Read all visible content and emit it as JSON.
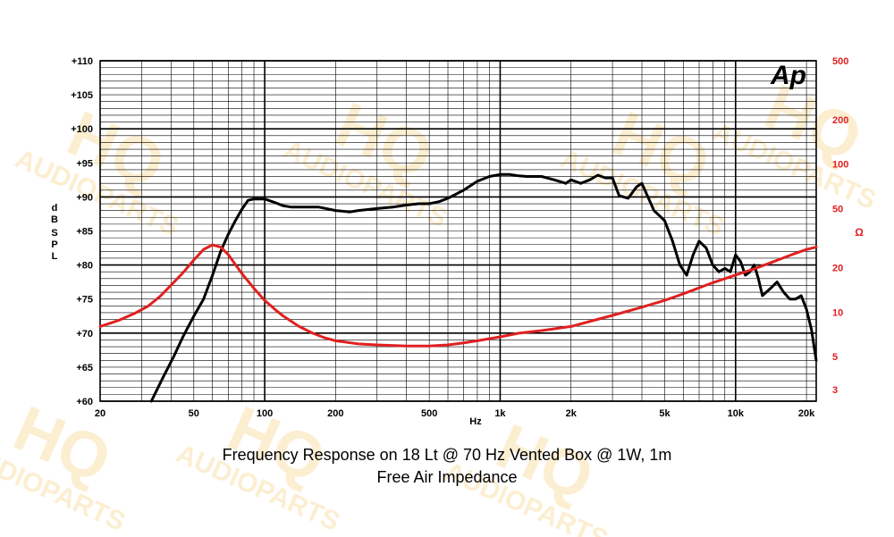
{
  "chart_data": {
    "type": "line",
    "title": "Frequency Response on 18 Lt @ 70 Hz Vented Box @ 1W, 1m",
    "subtitle": "Free Air Impedance",
    "xlabel": "Hz",
    "ylabel_left": [
      "dB",
      "SPL"
    ],
    "ylabel_right": "Ω",
    "xscale": "log",
    "xlim": [
      20,
      22000
    ],
    "ylim_left": [
      60,
      110
    ],
    "ylim_right": [
      2.5,
      500
    ],
    "yscale_right": "log",
    "grid": true,
    "logo": "Ap",
    "watermark": [
      "HQ",
      "AUDIOPARTS"
    ],
    "colors": {
      "spl": "#000000",
      "impedance": "#e02020",
      "watermark": "#f5b731"
    },
    "x_ticks": [
      {
        "v": 20,
        "label": "20"
      },
      {
        "v": 50,
        "label": "50"
      },
      {
        "v": 100,
        "label": "100"
      },
      {
        "v": 200,
        "label": "200"
      },
      {
        "v": 500,
        "label": "500"
      },
      {
        "v": 1000,
        "label": "1k"
      },
      {
        "v": 2000,
        "label": "2k"
      },
      {
        "v": 5000,
        "label": "5k"
      },
      {
        "v": 10000,
        "label": "10k"
      },
      {
        "v": 20000,
        "label": "20k"
      }
    ],
    "y_ticks_left": [
      {
        "v": 110,
        "label": "+110"
      },
      {
        "v": 105,
        "label": "+105"
      },
      {
        "v": 100,
        "label": "+100"
      },
      {
        "v": 95,
        "label": "+95"
      },
      {
        "v": 90,
        "label": "+90"
      },
      {
        "v": 85,
        "label": "+85"
      },
      {
        "v": 80,
        "label": "+80"
      },
      {
        "v": 75,
        "label": "+75"
      },
      {
        "v": 70,
        "label": "+70"
      },
      {
        "v": 65,
        "label": "+65"
      },
      {
        "v": 60,
        "label": "+60"
      }
    ],
    "y_ticks_right": [
      {
        "v": 500,
        "label": "500"
      },
      {
        "v": 200,
        "label": "200"
      },
      {
        "v": 100,
        "label": "100"
      },
      {
        "v": 50,
        "label": "50"
      },
      {
        "v": 20,
        "label": "20"
      },
      {
        "v": 10,
        "label": "10"
      },
      {
        "v": 5,
        "label": "5"
      },
      {
        "v": 3,
        "label": "3"
      }
    ],
    "series": [
      {
        "axis": "left",
        "x": [
          33,
          37,
          41,
          45,
          50,
          55,
          60,
          65,
          70,
          75,
          80,
          85,
          90,
          100,
          110,
          120,
          130,
          150,
          170,
          200,
          230,
          250,
          300,
          350,
          400,
          450,
          500,
          550,
          600,
          700,
          800,
          900,
          1000,
          1100,
          1200,
          1300,
          1400,
          1500,
          1700,
          1900,
          2000,
          2200,
          2400,
          2600,
          2800,
          3000,
          3200,
          3500,
          3800,
          4000,
          4500,
          5000,
          5400,
          5800,
          6200,
          6600,
          7000,
          7500,
          8000,
          8500,
          9000,
          9500,
          10000,
          10500,
          11000,
          11500,
          12000,
          12500,
          13000,
          14000,
          15000,
          16000,
          17000,
          18000,
          19000,
          20000,
          21000,
          22000
        ],
        "values": [
          60,
          63.5,
          66.5,
          69.5,
          72.5,
          75,
          78.5,
          82,
          84.5,
          86.5,
          88.2,
          89.5,
          89.7,
          89.7,
          89.2,
          88.7,
          88.5,
          88.5,
          88.5,
          88.0,
          87.8,
          88.0,
          88.3,
          88.5,
          88.8,
          89.0,
          89.0,
          89.3,
          89.8,
          91.0,
          92.3,
          93.0,
          93.3,
          93.3,
          93.1,
          93.0,
          93.0,
          93.0,
          92.5,
          92.0,
          92.5,
          92.0,
          92.5,
          93.2,
          92.8,
          92.8,
          90.2,
          89.8,
          91.5,
          92.0,
          88.0,
          86.5,
          83.5,
          80.0,
          78.5,
          81.5,
          83.5,
          82.5,
          80.0,
          79.0,
          79.5,
          79.0,
          81.5,
          80.5,
          78.5,
          79.0,
          80.0,
          78.0,
          75.5,
          76.5,
          77.5,
          76.0,
          75.0,
          75.0,
          75.5,
          73.5,
          70.5,
          66.0
        ]
      },
      {
        "axis": "right",
        "x": [
          20,
          24,
          28,
          32,
          36,
          40,
          45,
          50,
          55,
          60,
          65,
          70,
          75,
          80,
          90,
          100,
          110,
          120,
          140,
          160,
          180,
          200,
          250,
          300,
          400,
          500,
          600,
          700,
          800,
          1000,
          1200,
          1500,
          2000,
          2500,
          3000,
          4000,
          5000,
          6000,
          7000,
          8000,
          10000,
          12000,
          14000,
          16000,
          18000,
          20000,
          22000
        ],
        "values": [
          8.0,
          8.8,
          9.8,
          11.0,
          12.8,
          15.2,
          18.5,
          22.5,
          26.5,
          28.5,
          27.5,
          24.5,
          21.0,
          18.2,
          14.5,
          12.0,
          10.5,
          9.4,
          8.0,
          7.2,
          6.7,
          6.4,
          6.1,
          6.0,
          5.9,
          5.9,
          6.0,
          6.2,
          6.4,
          6.8,
          7.2,
          7.5,
          8.0,
          8.8,
          9.5,
          10.8,
          12.0,
          13.3,
          14.6,
          15.8,
          17.8,
          19.6,
          21.5,
          23.3,
          25.0,
          26.5,
          27.5
        ]
      }
    ]
  }
}
